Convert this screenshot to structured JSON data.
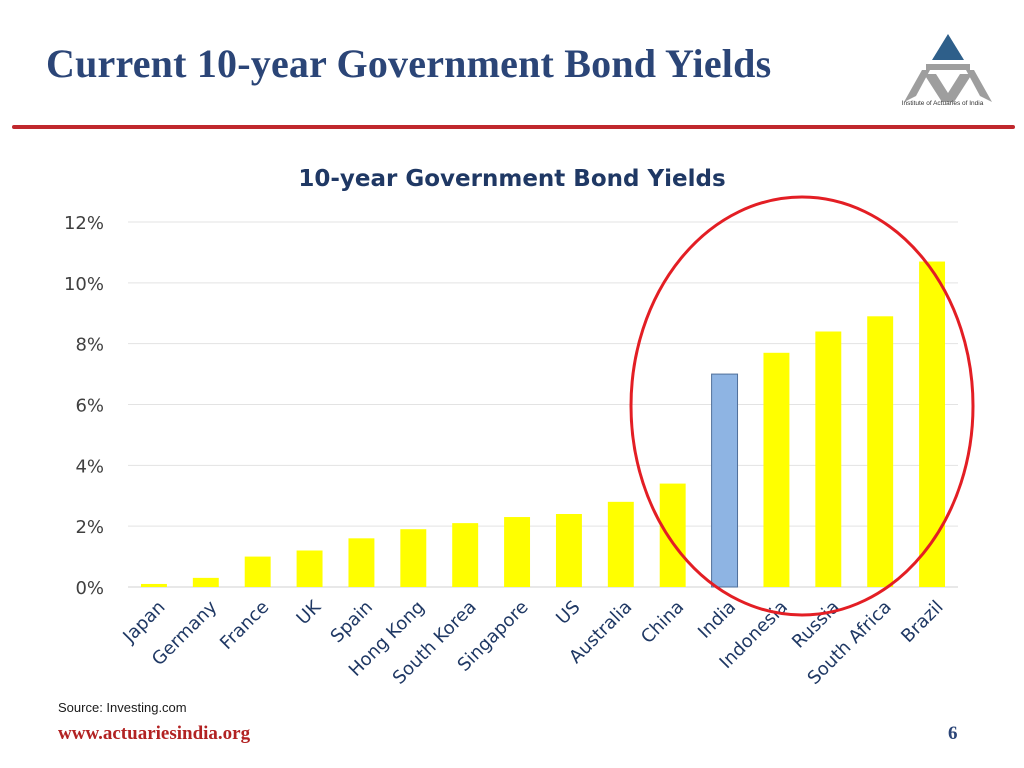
{
  "slide": {
    "title": "Current 10-year Government Bond Yields",
    "logo_text": "Institute of Actuaries of India",
    "source": "Source: Investing.com",
    "footer_url": "www.actuariesindia.org",
    "page_number": "6"
  },
  "colors": {
    "title": "#2b4577",
    "rule": "#c0282d",
    "bar_default": "#ffff00",
    "bar_highlight": "#8eb4e3",
    "highlight_circle": "#e31e24",
    "chart_title": "#1f3864"
  },
  "chart_data": {
    "type": "bar",
    "title": "10-year Government Bond Yields",
    "xlabel": "",
    "ylabel": "",
    "categories": [
      "Japan",
      "Germany",
      "France",
      "UK",
      "Spain",
      "Hong Kong",
      "South Korea",
      "Singapore",
      "US",
      "Australia",
      "China",
      "India",
      "Indonesia",
      "Russia",
      "South Africa",
      "Brazil"
    ],
    "values": [
      0.1,
      0.3,
      1.0,
      1.2,
      1.6,
      1.9,
      2.1,
      2.3,
      2.4,
      2.8,
      3.4,
      7.0,
      7.7,
      8.4,
      8.9,
      10.7
    ],
    "highlighted_category": "India",
    "ylim": [
      0,
      12
    ],
    "yticks": [
      "0%",
      "2%",
      "4%",
      "6%",
      "8%",
      "10%",
      "12%"
    ],
    "grid": true,
    "legend": "none",
    "annotation": "red circle around India, Indonesia, Russia, South Africa, Brazil"
  }
}
